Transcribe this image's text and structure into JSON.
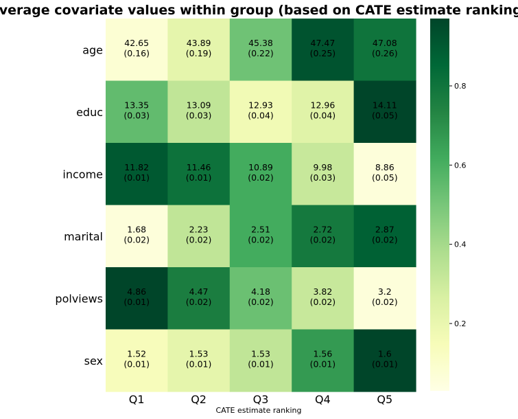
{
  "chart_data": {
    "type": "heatmap",
    "title": "Average covariate values within group (based on CATE estimate ranking)",
    "xlabel": "CATE estimate ranking",
    "ylabel": "",
    "columns": [
      "Q1",
      "Q2",
      "Q3",
      "Q4",
      "Q5"
    ],
    "rows": [
      "age",
      "educ",
      "income",
      "marital",
      "polviews",
      "sex"
    ],
    "cells": [
      [
        {
          "value": "42.65",
          "se": "(0.16)",
          "color": 0.05
        },
        {
          "value": "43.89",
          "se": "(0.19)",
          "color": 0.2
        },
        {
          "value": "45.38",
          "se": "(0.22)",
          "color": 0.52
        },
        {
          "value": "47.47",
          "se": "(0.25)",
          "color": 0.95
        },
        {
          "value": "47.08",
          "se": "(0.26)",
          "color": 0.82
        }
      ],
      [
        {
          "value": "13.35",
          "se": "(0.03)",
          "color": 0.55
        },
        {
          "value": "13.09",
          "se": "(0.03)",
          "color": 0.32
        },
        {
          "value": "12.93",
          "se": "(0.04)",
          "color": 0.15
        },
        {
          "value": "12.96",
          "se": "(0.04)",
          "color": 0.22
        },
        {
          "value": "14.11",
          "se": "(0.05)",
          "color": 1.0
        }
      ],
      [
        {
          "value": "11.82",
          "se": "(0.01)",
          "color": 0.93
        },
        {
          "value": "11.46",
          "se": "(0.01)",
          "color": 0.83
        },
        {
          "value": "10.89",
          "se": "(0.02)",
          "color": 0.62
        },
        {
          "value": "9.98",
          "se": "(0.03)",
          "color": 0.3
        },
        {
          "value": "8.86",
          "se": "(0.05)",
          "color": 0.03
        }
      ],
      [
        {
          "value": "1.68",
          "se": "(0.02)",
          "color": 0.03
        },
        {
          "value": "2.23",
          "se": "(0.02)",
          "color": 0.32
        },
        {
          "value": "2.51",
          "se": "(0.02)",
          "color": 0.62
        },
        {
          "value": "2.72",
          "se": "(0.02)",
          "color": 0.8
        },
        {
          "value": "2.87",
          "se": "(0.02)",
          "color": 0.9
        }
      ],
      [
        {
          "value": "4.86",
          "se": "(0.01)",
          "color": 1.0
        },
        {
          "value": "4.47",
          "se": "(0.02)",
          "color": 0.78
        },
        {
          "value": "4.18",
          "se": "(0.02)",
          "color": 0.53
        },
        {
          "value": "3.82",
          "se": "(0.02)",
          "color": 0.3
        },
        {
          "value": "3.2",
          "se": "(0.02)",
          "color": 0.03
        }
      ],
      [
        {
          "value": "1.52",
          "se": "(0.01)",
          "color": 0.12
        },
        {
          "value": "1.53",
          "se": "(0.01)",
          "color": 0.2
        },
        {
          "value": "1.53",
          "se": "(0.01)",
          "color": 0.32
        },
        {
          "value": "1.56",
          "se": "(0.01)",
          "color": 0.68
        },
        {
          "value": "1.6",
          "se": "(0.01)",
          "color": 1.0
        }
      ]
    ],
    "colorbar": {
      "range": [
        0.03,
        0.97
      ],
      "ticks": [
        "0.2",
        "0.4",
        "0.6",
        "0.8"
      ],
      "tick_values": [
        0.2,
        0.4,
        0.6,
        0.8
      ]
    },
    "colormap": "Greens",
    "colormap_stops": [
      "#ffffe5",
      "#f7fcb9",
      "#d9f0a3",
      "#addd8e",
      "#78c679",
      "#41ab5d",
      "#238443",
      "#006837",
      "#004529"
    ],
    "grid": false,
    "legend": "colorbar-right"
  }
}
